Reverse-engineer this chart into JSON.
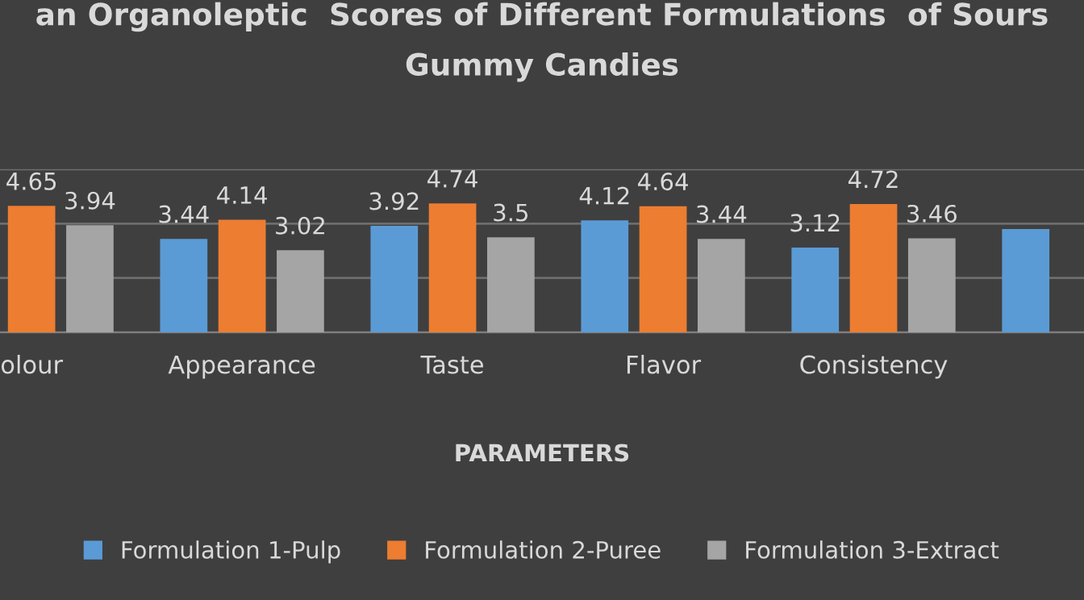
{
  "chart_data": {
    "type": "bar",
    "title": "an Organoleptic  Scores of Different Formulations  of Sours\nGummy Candies",
    "xlabel": "PARAMETERS",
    "categories": [
      "olour",
      "Appearance",
      "Taste",
      "Flavor",
      "Consistency",
      null
    ],
    "series": [
      {
        "name": "Formulation 1-Pulp",
        "color": "#5b9bd5",
        "values": [
          null,
          3.44,
          3.92,
          4.12,
          3.12,
          3.8
        ],
        "value_labels": [
          null,
          "3.44",
          "3.92",
          "4.12",
          "3.12",
          null
        ]
      },
      {
        "name": "Formulation 2-Puree",
        "color": "#ed7d31",
        "values": [
          4.65,
          4.14,
          4.74,
          4.64,
          4.72,
          null
        ],
        "value_labels": [
          "4.65",
          "4.14",
          "4.74",
          "4.64",
          "4.72",
          null
        ]
      },
      {
        "name": "Formulation 3-Extract",
        "color": "#a5a5a5",
        "values": [
          3.94,
          3.02,
          3.5,
          3.44,
          3.46,
          null
        ],
        "value_labels": [
          "3.94",
          "3.02",
          "3.5",
          "3.44",
          "3.46",
          null
        ]
      }
    ],
    "ylim": [
      0,
      6
    ],
    "yticks": [
      {
        "value": 0,
        "label": null
      },
      {
        "value": 2,
        "label": null
      },
      {
        "value": 4,
        "label": null
      },
      {
        "value": 6,
        "label": null
      }
    ],
    "tick_labels": "x",
    "grid": "y",
    "legend": "bottom",
    "data_labels": true
  }
}
